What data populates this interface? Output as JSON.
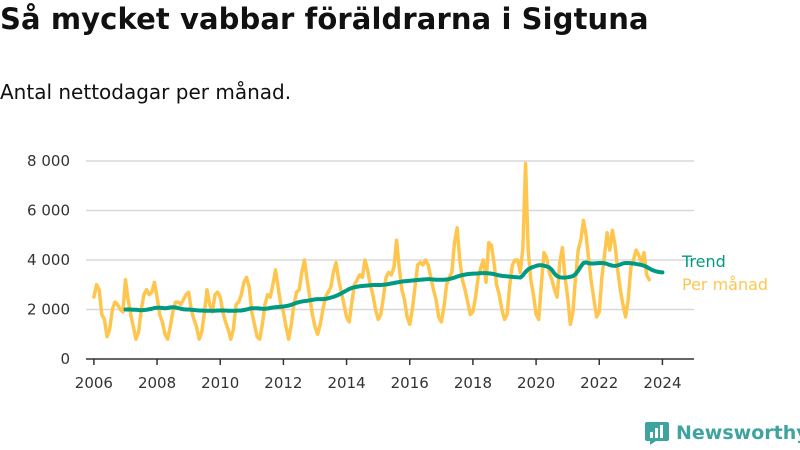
{
  "title": "Så mycket vabbar föräldrarna i Sigtuna",
  "subtitle": "Antal nettodagar per månad.",
  "logo": {
    "text": "Newsworthy",
    "icon": "newsworthy-chat-bars-icon"
  },
  "colors": {
    "trend": "#009a82",
    "monthly": "#ffc64f",
    "grid": "#d8d8d8",
    "axis": "#333333",
    "logo": "#3fa3a0"
  },
  "chart_data": {
    "type": "line",
    "title": "Så mycket vabbar föräldrarna i Sigtuna",
    "subtitle": "Antal nettodagar per månad.",
    "xlabel": "",
    "ylabel": "",
    "xlim": [
      2005.75,
      2025.0
    ],
    "ylim": [
      0,
      8000
    ],
    "x_ticks": [
      2006,
      2008,
      2010,
      2012,
      2014,
      2016,
      2018,
      2020,
      2022,
      2024
    ],
    "x_tick_labels": [
      "2006",
      "2008",
      "2010",
      "2012",
      "2014",
      "2016",
      "2018",
      "2020",
      "2022",
      "2024"
    ],
    "y_ticks": [
      0,
      2000,
      4000,
      6000,
      8000
    ],
    "y_tick_labels": [
      "0",
      "2 000",
      "4 000",
      "6 000",
      "8 000"
    ],
    "grid": "horizontal",
    "legend": "direct labels at right end of lines",
    "series": [
      {
        "name": "Per månad",
        "color": "#ffc64f",
        "start": [
          2006,
          1
        ],
        "values": [
          2500,
          3000,
          2800,
          1800,
          1600,
          900,
          1200,
          2000,
          2300,
          2200,
          2000,
          1900,
          3200,
          2400,
          1800,
          1300,
          800,
          1100,
          2000,
          2600,
          2800,
          2600,
          2700,
          3100,
          2500,
          1800,
          1500,
          1000,
          800,
          1300,
          1900,
          2300,
          2300,
          2200,
          2400,
          2600,
          2700,
          2000,
          1600,
          1300,
          800,
          1100,
          1900,
          2800,
          2200,
          1900,
          2600,
          2700,
          2500,
          1900,
          1500,
          1200,
          800,
          1200,
          2200,
          2300,
          2600,
          3100,
          3300,
          2900,
          1900,
          1400,
          900,
          800,
          1400,
          2200,
          2600,
          2500,
          3000,
          3600,
          2900,
          2200,
          1900,
          1300,
          800,
          1400,
          2200,
          2700,
          2800,
          3500,
          4000,
          3200,
          2500,
          1800,
          1300,
          1000,
          1400,
          2000,
          2500,
          2700,
          2900,
          3500,
          3900,
          3200,
          2700,
          2200,
          1700,
          1500,
          2300,
          3000,
          3200,
          3400,
          3300,
          4000,
          3600,
          3000,
          2600,
          2000,
          1600,
          1800,
          2500,
          3300,
          3500,
          3400,
          3700,
          4800,
          3700,
          2800,
          2400,
          1700,
          1400,
          2000,
          2900,
          3800,
          3900,
          3800,
          4000,
          3800,
          3300,
          2800,
          2400,
          1700,
          1500,
          2100,
          3000,
          3300,
          3500,
          4700,
          5300,
          4000,
          3200,
          2800,
          2300,
          1800,
          1900,
          2500,
          3300,
          3700,
          4000,
          3100,
          4700,
          4600,
          3900,
          3000,
          2600,
          2000,
          1600,
          1800,
          3000,
          3800,
          4000,
          4000,
          3500,
          4500,
          7900,
          4400,
          3200,
          2600,
          1800,
          1600,
          3000,
          4300,
          4100,
          3500,
          3200,
          2800,
          2500,
          3900,
          4500,
          3300,
          2500,
          1400,
          1900,
          3300,
          4400,
          4800,
          5600,
          5000,
          4000,
          3100,
          2400,
          1700,
          1900,
          3300,
          4200,
          5100,
          4400,
          5200,
          4600,
          3600,
          2800,
          2200,
          1700,
          2400,
          3700,
          4000,
          4400,
          4200,
          3900,
          4300,
          3400,
          3200
        ]
      },
      {
        "name": "Trend",
        "color": "#009a82",
        "start": [
          2007,
          1
        ],
        "values": [
          2000,
          2000,
          2000,
          1990,
          1990,
          1980,
          1970,
          1980,
          1990,
          2010,
          2030,
          2060,
          2070,
          2070,
          2060,
          2050,
          2060,
          2080,
          2090,
          2080,
          2060,
          2030,
          2010,
          2000,
          2000,
          1990,
          1980,
          1970,
          1960,
          1960,
          1950,
          1950,
          1950,
          1950,
          1950,
          1960,
          1960,
          1960,
          1960,
          1950,
          1950,
          1950,
          1950,
          1960,
          1960,
          1980,
          2000,
          2030,
          2050,
          2050,
          2050,
          2040,
          2030,
          2030,
          2040,
          2060,
          2080,
          2090,
          2100,
          2110,
          2120,
          2140,
          2160,
          2190,
          2230,
          2270,
          2300,
          2320,
          2340,
          2350,
          2370,
          2390,
          2410,
          2420,
          2420,
          2420,
          2430,
          2450,
          2480,
          2510,
          2550,
          2600,
          2650,
          2710,
          2770,
          2830,
          2870,
          2900,
          2920,
          2940,
          2950,
          2960,
          2970,
          2980,
          2990,
          2990,
          2990,
          2990,
          3000,
          3010,
          3030,
          3050,
          3070,
          3090,
          3110,
          3130,
          3140,
          3150,
          3160,
          3170,
          3180,
          3190,
          3200,
          3210,
          3220,
          3230,
          3220,
          3210,
          3200,
          3200,
          3200,
          3200,
          3210,
          3230,
          3260,
          3290,
          3330,
          3360,
          3390,
          3410,
          3430,
          3440,
          3450,
          3450,
          3460,
          3470,
          3470,
          3470,
          3460,
          3450,
          3430,
          3400,
          3380,
          3360,
          3350,
          3340,
          3330,
          3320,
          3310,
          3300,
          3290,
          3380,
          3520,
          3620,
          3680,
          3720,
          3760,
          3790,
          3790,
          3770,
          3740,
          3700,
          3600,
          3450,
          3350,
          3300,
          3290,
          3290,
          3300,
          3320,
          3350,
          3430,
          3570,
          3740,
          3880,
          3900,
          3870,
          3860,
          3860,
          3870,
          3880,
          3880,
          3870,
          3840,
          3800,
          3770,
          3760,
          3780,
          3820,
          3860,
          3880,
          3880,
          3870,
          3860,
          3840,
          3820,
          3800,
          3770,
          3720,
          3660,
          3600,
          3560,
          3530,
          3510,
          3500
        ]
      }
    ]
  }
}
